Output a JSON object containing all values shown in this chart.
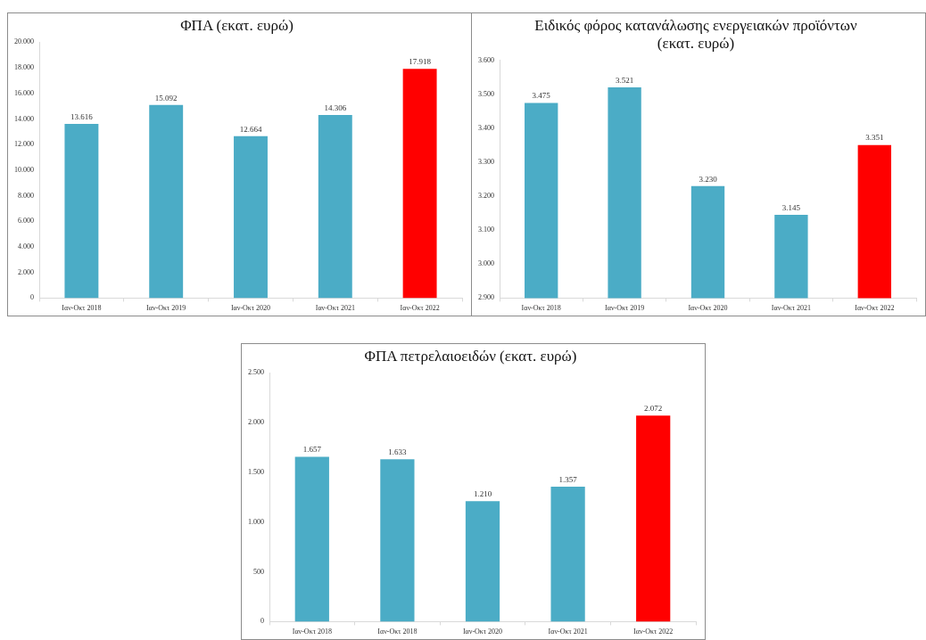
{
  "chart_data": [
    {
      "type": "bar",
      "title": "ΦΠΑ (εκατ. ευρώ)",
      "categories": [
        "Ιαν-Οκτ 2018",
        "Ιαν-Οκτ 2019",
        "Ιαν-Οκτ 2020",
        "Ιαν-Οκτ 2021",
        "Ιαν-Οκτ 2022"
      ],
      "values": [
        13616,
        15092,
        12664,
        14306,
        17918
      ],
      "value_labels": [
        "13.616",
        "15.092",
        "12.664",
        "14.306",
        "17.918"
      ],
      "colors": [
        "#4bacc6",
        "#4bacc6",
        "#4bacc6",
        "#4bacc6",
        "#ff0000"
      ],
      "ylim": [
        0,
        20000
      ],
      "yticks": [
        {
          "value": 0,
          "label": "0"
        },
        {
          "value": 2000,
          "label": "2.000"
        },
        {
          "value": 4000,
          "label": "4.000"
        },
        {
          "value": 6000,
          "label": "6.000"
        },
        {
          "value": 8000,
          "label": "8.000"
        },
        {
          "value": 10000,
          "label": "10.000"
        },
        {
          "value": 12000,
          "label": "12.000"
        },
        {
          "value": 14000,
          "label": "14.000"
        },
        {
          "value": 16000,
          "label": "16.000"
        },
        {
          "value": 18000,
          "label": "18.000"
        },
        {
          "value": 20000,
          "label": "20.000"
        }
      ],
      "grid": false,
      "legend": false
    },
    {
      "type": "bar",
      "title": "Ειδικός φόρος κατανάλωσης ενεργειακών προϊόντων (εκατ. ευρώ)",
      "categories": [
        "Ιαν-Οκτ 2018",
        "Ιαν-Οκτ 2019",
        "Ιαν-Οκτ 2020",
        "Ιαν-Οκτ 2021",
        "Ιαν-Οκτ 2022"
      ],
      "values": [
        3475,
        3521,
        3230,
        3145,
        3351
      ],
      "value_labels": [
        "3.475",
        "3.521",
        "3.230",
        "3.145",
        "3.351"
      ],
      "colors": [
        "#4bacc6",
        "#4bacc6",
        "#4bacc6",
        "#4bacc6",
        "#ff0000"
      ],
      "ylim": [
        2900,
        3600
      ],
      "yticks": [
        {
          "value": 2900,
          "label": "2.900"
        },
        {
          "value": 3000,
          "label": "3.000"
        },
        {
          "value": 3100,
          "label": "3.100"
        },
        {
          "value": 3200,
          "label": "3.200"
        },
        {
          "value": 3300,
          "label": "3.300"
        },
        {
          "value": 3400,
          "label": "3.400"
        },
        {
          "value": 3500,
          "label": "3.500"
        },
        {
          "value": 3600,
          "label": "3.600"
        }
      ],
      "grid": false,
      "legend": false
    },
    {
      "type": "bar",
      "title": "ΦΠΑ πετρελαιοειδών (εκατ. ευρώ)",
      "categories": [
        "Ιαν-Οκτ 2018",
        "Ιαν-Οκτ 2018",
        "Ιαν-Οκτ 2020",
        "Ιαν-Οκτ 2021",
        "Ιαν-Οκτ 2022"
      ],
      "values": [
        1657,
        1633,
        1210,
        1357,
        2072
      ],
      "value_labels": [
        "1.657",
        "1.633",
        "1.210",
        "1.357",
        "2.072"
      ],
      "colors": [
        "#4bacc6",
        "#4bacc6",
        "#4bacc6",
        "#4bacc6",
        "#ff0000"
      ],
      "ylim": [
        0,
        2500
      ],
      "yticks": [
        {
          "value": 0,
          "label": "0"
        },
        {
          "value": 500,
          "label": "500"
        },
        {
          "value": 1000,
          "label": "1.000"
        },
        {
          "value": 1500,
          "label": "1.500"
        },
        {
          "value": 2000,
          "label": "2.000"
        },
        {
          "value": 2500,
          "label": "2.500"
        }
      ],
      "grid": false,
      "legend": false
    }
  ]
}
